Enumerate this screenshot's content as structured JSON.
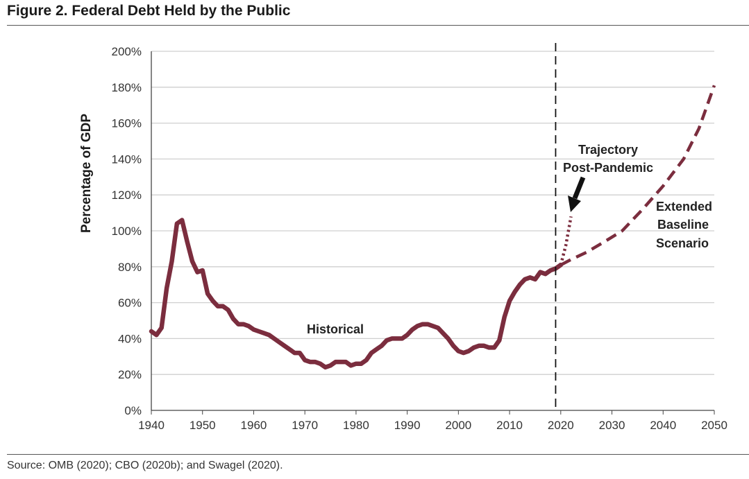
{
  "figure": {
    "title": "Figure 2. Federal Debt Held by the Public",
    "source": "Source: OMB (2020); CBO (2020b); and Swagel (2020)."
  },
  "colors": {
    "series": "#7b2d3e",
    "grid": "#cfcfcf",
    "axis": "#444444",
    "divider": "#111111",
    "arrow": "#111111"
  },
  "chart_data": {
    "type": "line",
    "title": "Figure 2. Federal Debt Held by the Public",
    "xlabel": "",
    "ylabel": "Percentage of GDP",
    "xlim": [
      1940,
      2050
    ],
    "ylim": [
      0,
      200
    ],
    "x_ticks": [
      1940,
      1950,
      1960,
      1970,
      1980,
      1990,
      2000,
      2010,
      2020,
      2030,
      2040,
      2050
    ],
    "x_tick_labels": [
      "1940",
      "1950",
      "1960",
      "1970",
      "1980",
      "1990",
      "2000",
      "2010",
      "2020",
      "2030",
      "2040",
      "2050"
    ],
    "y_ticks": [
      0,
      20,
      40,
      60,
      80,
      100,
      120,
      140,
      160,
      180,
      200
    ],
    "y_tick_labels": [
      "0%",
      "20%",
      "40%",
      "60%",
      "80%",
      "100%",
      "120%",
      "140%",
      "160%",
      "180%",
      "200%"
    ],
    "grid": "horizontal",
    "vertical_reference_line": 2019,
    "series": [
      {
        "key": "historical",
        "style": "solid",
        "points": [
          [
            1940,
            44
          ],
          [
            1941,
            42
          ],
          [
            1942,
            46
          ],
          [
            1943,
            68
          ],
          [
            1944,
            83
          ],
          [
            1945,
            104
          ],
          [
            1946,
            106
          ],
          [
            1947,
            94
          ],
          [
            1948,
            83
          ],
          [
            1949,
            77
          ],
          [
            1950,
            78
          ],
          [
            1951,
            65
          ],
          [
            1952,
            61
          ],
          [
            1953,
            58
          ],
          [
            1954,
            58
          ],
          [
            1955,
            56
          ],
          [
            1956,
            51
          ],
          [
            1957,
            48
          ],
          [
            1958,
            48
          ],
          [
            1959,
            47
          ],
          [
            1960,
            45
          ],
          [
            1961,
            44
          ],
          [
            1962,
            43
          ],
          [
            1963,
            42
          ],
          [
            1964,
            40
          ],
          [
            1965,
            38
          ],
          [
            1966,
            36
          ],
          [
            1967,
            34
          ],
          [
            1968,
            32
          ],
          [
            1969,
            32
          ],
          [
            1970,
            28
          ],
          [
            1971,
            27
          ],
          [
            1972,
            27
          ],
          [
            1973,
            26
          ],
          [
            1974,
            24
          ],
          [
            1975,
            25
          ],
          [
            1976,
            27
          ],
          [
            1977,
            27
          ],
          [
            1978,
            27
          ],
          [
            1979,
            25
          ],
          [
            1980,
            26
          ],
          [
            1981,
            26
          ],
          [
            1982,
            28
          ],
          [
            1983,
            32
          ],
          [
            1984,
            34
          ],
          [
            1985,
            36
          ],
          [
            1986,
            39
          ],
          [
            1987,
            40
          ],
          [
            1988,
            40
          ],
          [
            1989,
            40
          ],
          [
            1990,
            42
          ],
          [
            1991,
            45
          ],
          [
            1992,
            47
          ],
          [
            1993,
            48
          ],
          [
            1994,
            48
          ],
          [
            1995,
            47
          ],
          [
            1996,
            46
          ],
          [
            1997,
            43
          ],
          [
            1998,
            40
          ],
          [
            1999,
            36
          ],
          [
            2000,
            33
          ],
          [
            2001,
            32
          ],
          [
            2002,
            33
          ],
          [
            2003,
            35
          ],
          [
            2004,
            36
          ],
          [
            2005,
            36
          ],
          [
            2006,
            35
          ],
          [
            2007,
            35
          ],
          [
            2008,
            39
          ],
          [
            2009,
            52
          ],
          [
            2010,
            61
          ],
          [
            2011,
            66
          ],
          [
            2012,
            70
          ],
          [
            2013,
            73
          ],
          [
            2014,
            74
          ],
          [
            2015,
            73
          ],
          [
            2016,
            77
          ],
          [
            2017,
            76
          ],
          [
            2018,
            78
          ],
          [
            2019,
            79
          ],
          [
            2020,
            81
          ]
        ]
      },
      {
        "key": "extended_baseline",
        "style": "dashed",
        "points": [
          [
            2020,
            81
          ],
          [
            2022,
            84
          ],
          [
            2025,
            88
          ],
          [
            2028,
            93
          ],
          [
            2032,
            100
          ],
          [
            2036,
            112
          ],
          [
            2040,
            125
          ],
          [
            2044,
            140
          ],
          [
            2047,
            157
          ],
          [
            2050,
            181
          ]
        ]
      },
      {
        "key": "trajectory_post_pandemic",
        "style": "dotted",
        "points": [
          [
            2020,
            81
          ],
          [
            2021,
            92
          ],
          [
            2022,
            108
          ]
        ]
      }
    ],
    "annotations": [
      {
        "key": "historical",
        "text": "Historical"
      },
      {
        "key": "trajectory_line1",
        "text": "Trajectory"
      },
      {
        "key": "trajectory_line2",
        "text": "Post-Pandemic"
      },
      {
        "key": "baseline_line1",
        "text": "Extended"
      },
      {
        "key": "baseline_line2",
        "text": "Baseline"
      },
      {
        "key": "baseline_line3",
        "text": "Scenario"
      }
    ]
  }
}
